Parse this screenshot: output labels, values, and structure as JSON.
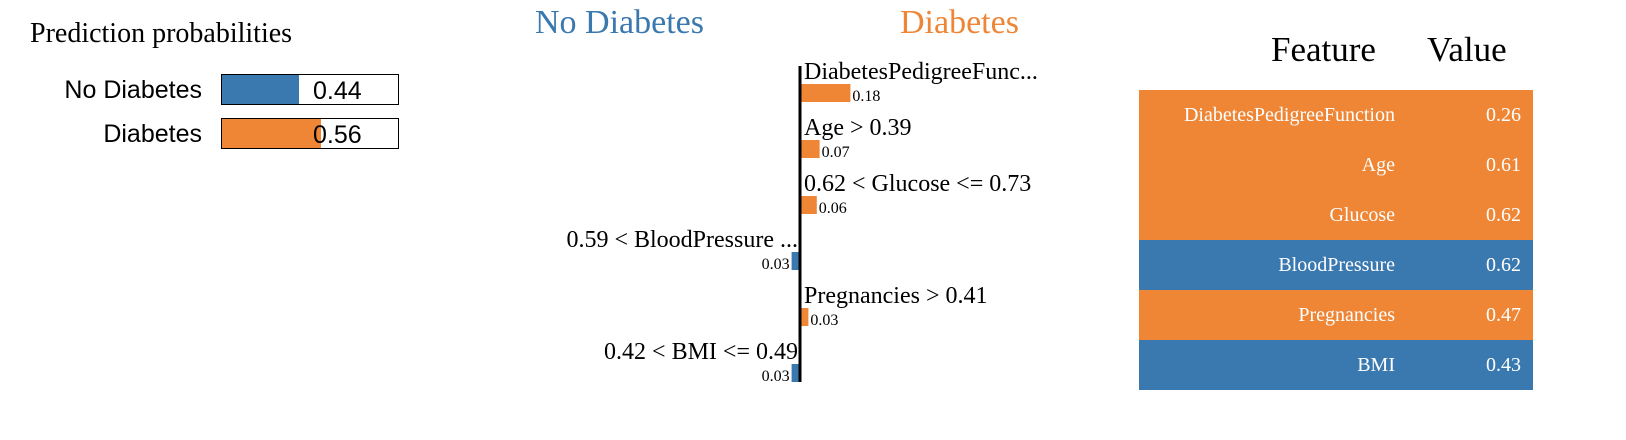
{
  "colors": {
    "negative": "#3a78b0",
    "positive": "#ee8636"
  },
  "prediction": {
    "title": "Prediction probabilities",
    "classes": [
      {
        "label": "No Diabetes",
        "value": 0.44,
        "display": "0.44",
        "color": "#3a78b0"
      },
      {
        "label": "Diabetes",
        "value": 0.56,
        "display": "0.56",
        "color": "#ee8636"
      }
    ]
  },
  "chart_data": {
    "type": "bar",
    "negative_label": "No Diabetes",
    "positive_label": "Diabetes",
    "categories": [
      "DiabetesPedigreeFunc...",
      "Age > 0.39",
      "0.62 < Glucose <= 0.73",
      "0.59 < BloodPressure ...",
      "Pregnancies > 0.41",
      "0.42 < BMI <= 0.49"
    ],
    "values": [
      0.18,
      0.07,
      0.06,
      -0.03,
      0.03,
      -0.03
    ],
    "value_labels": [
      "0.18",
      "0.07",
      "0.06",
      "0.03",
      "0.03",
      "0.03"
    ]
  },
  "feature_table": {
    "headers": [
      "Feature",
      "Value"
    ],
    "rows": [
      {
        "feature": "DiabetesPedigreeFunction",
        "value": "0.26",
        "side": "positive"
      },
      {
        "feature": "Age",
        "value": "0.61",
        "side": "positive"
      },
      {
        "feature": "Glucose",
        "value": "0.62",
        "side": "positive"
      },
      {
        "feature": "BloodPressure",
        "value": "0.62",
        "side": "negative"
      },
      {
        "feature": "Pregnancies",
        "value": "0.47",
        "side": "positive"
      },
      {
        "feature": "BMI",
        "value": "0.43",
        "side": "negative"
      }
    ]
  }
}
